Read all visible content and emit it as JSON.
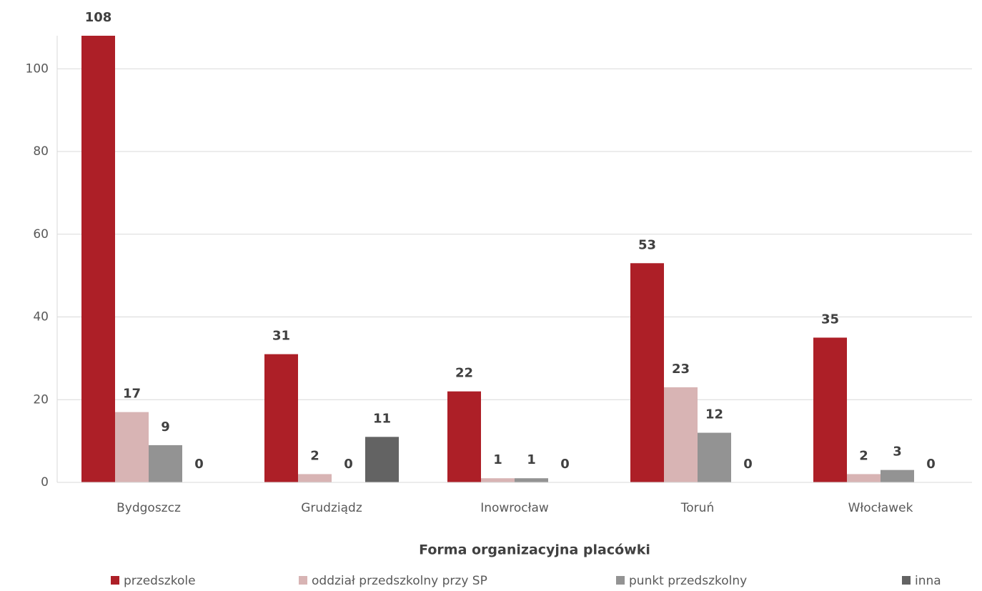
{
  "chart_data": {
    "type": "bar",
    "x_label": "Forma  organizacyjna placówki",
    "categories": [
      "Bydgoszcz",
      "Grudziądz",
      "Inowrocław",
      "Toruń",
      "Włocławek"
    ],
    "series": [
      {
        "name": "przedszkole",
        "color": "#ad1f27",
        "values": [
          108,
          31,
          22,
          53,
          35
        ]
      },
      {
        "name": "oddział przedszkolny przy SP",
        "color": "#d8b4b4",
        "values": [
          17,
          2,
          1,
          23,
          2
        ]
      },
      {
        "name": "punkt przedszkolny",
        "color": "#939393",
        "values": [
          9,
          0,
          1,
          12,
          3
        ]
      },
      {
        "name": "inna",
        "color": "#636363",
        "values": [
          0,
          11,
          0,
          0,
          0
        ]
      }
    ],
    "ylim": [
      0,
      108
    ],
    "yticks": [
      0,
      20,
      40,
      60,
      80,
      100
    ],
    "grid": true,
    "legend": "bottom"
  }
}
